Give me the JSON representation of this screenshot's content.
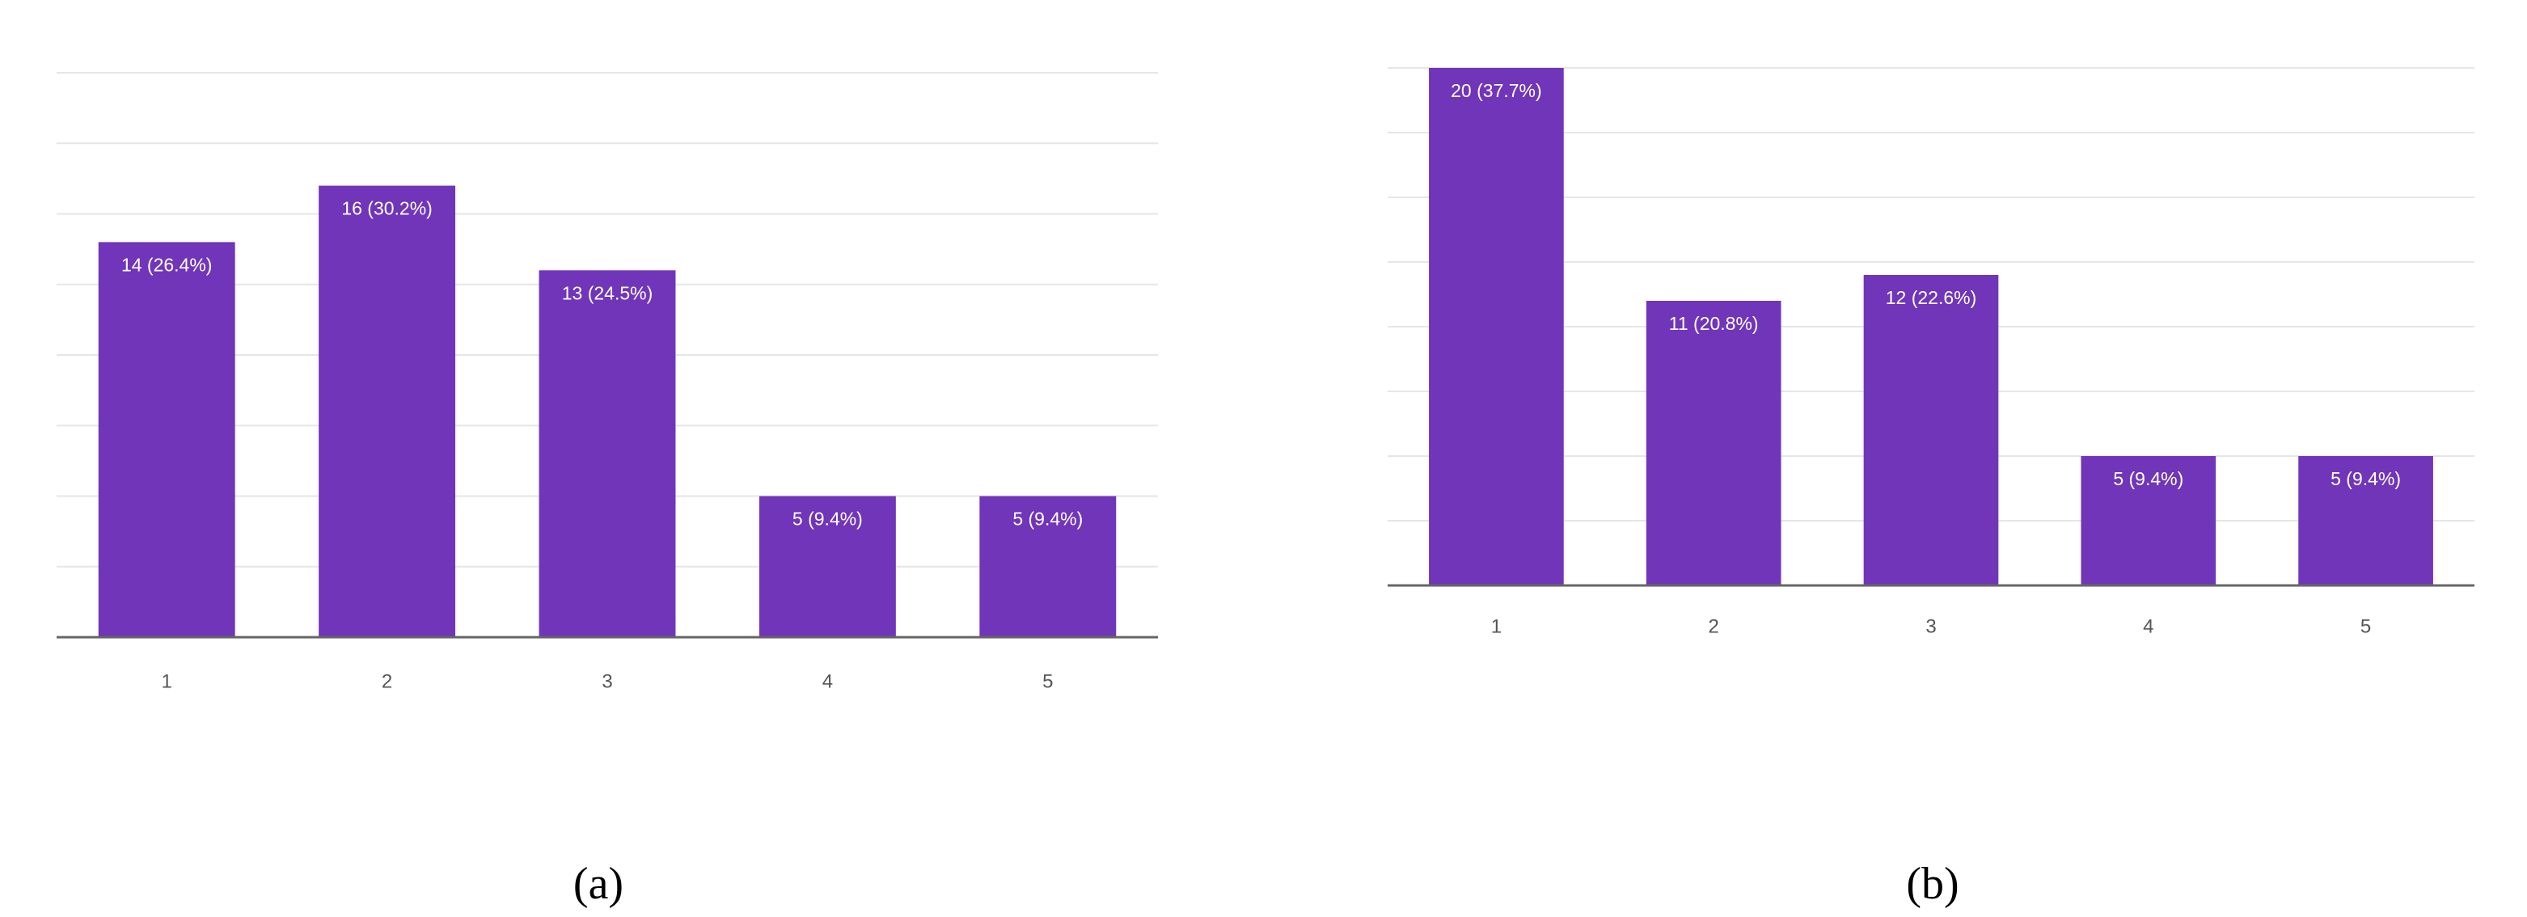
{
  "chart_data": [
    {
      "type": "bar",
      "caption": "(a)",
      "categories": [
        "1",
        "2",
        "3",
        "4",
        "5"
      ],
      "values": [
        14,
        16,
        13,
        5,
        5
      ],
      "value_labels": [
        "14 (26.4%)",
        "16 (30.2%)",
        "13 (24.5%)",
        "5 (9.4%)",
        "5 (9.4%)"
      ],
      "color": "#7035b8",
      "ylim": [
        0,
        20
      ],
      "yticks": [
        0,
        2.5,
        5,
        7.5,
        10,
        12.5,
        15,
        17.5,
        20
      ],
      "grid": true
    },
    {
      "type": "bar",
      "caption": "(b)",
      "categories": [
        "1",
        "2",
        "3",
        "4",
        "5"
      ],
      "values": [
        20,
        11,
        12,
        5,
        5
      ],
      "value_labels": [
        "20 (37.7%)",
        "11 (20.8%)",
        "12 (22.6%)",
        "5 (9.4%)",
        "5 (9.4%)"
      ],
      "color": "#7035b8",
      "ylim": [
        0,
        20
      ],
      "yticks": [
        0,
        2.5,
        5,
        7.5,
        10,
        12.5,
        15,
        17.5,
        20
      ],
      "grid": true
    }
  ]
}
